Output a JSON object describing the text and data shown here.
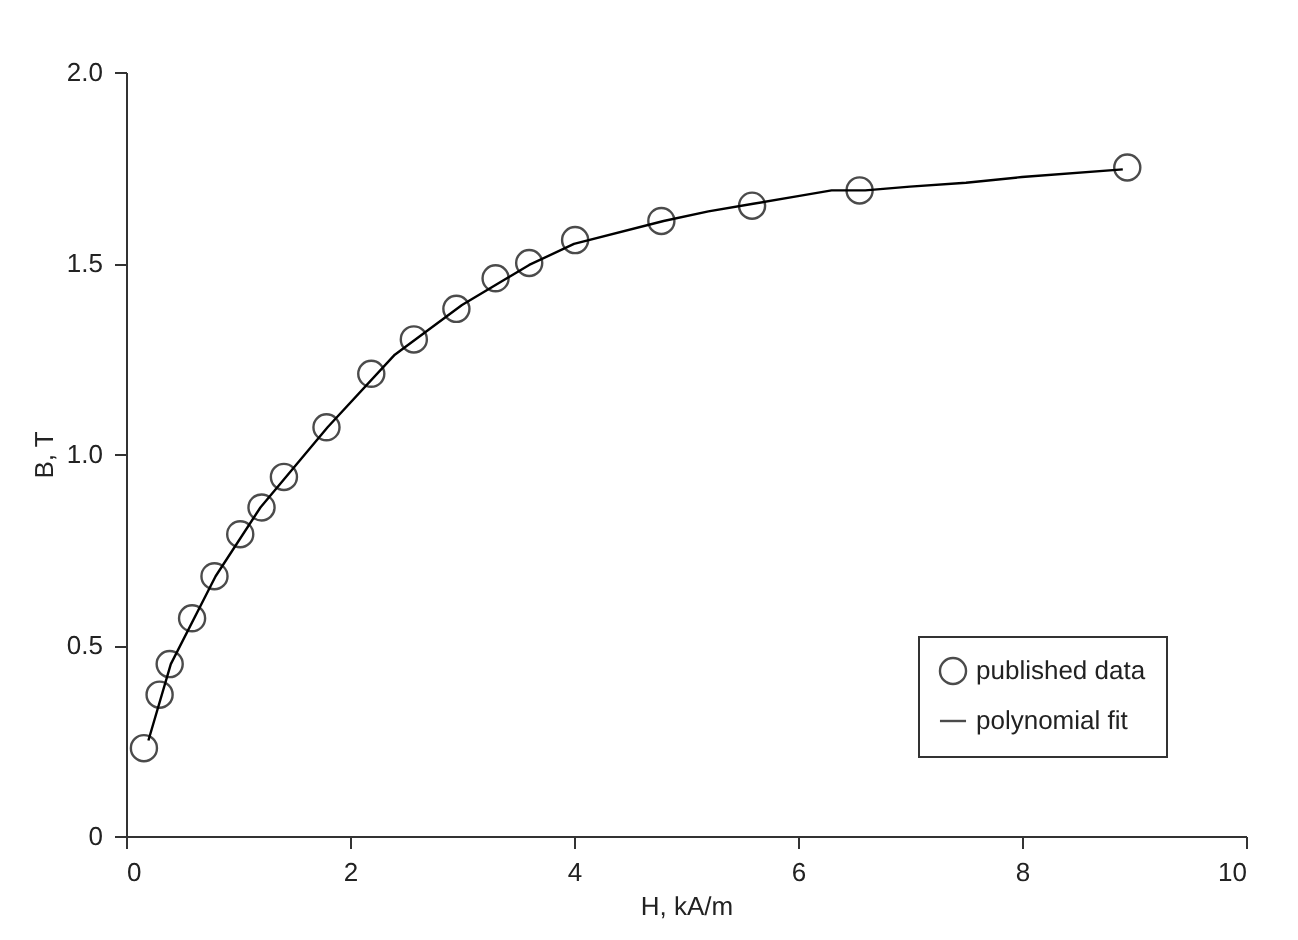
{
  "chart_data": {
    "type": "scatter",
    "xlabel": "H, kA/m",
    "ylabel": "B, T",
    "xlim": [
      0,
      10
    ],
    "ylim": [
      0,
      2.0
    ],
    "xticks": [
      0,
      2,
      4,
      6,
      8,
      10
    ],
    "yticks": [
      {
        "value": 0,
        "label": "0"
      },
      {
        "value": 0.5,
        "label": "0.5"
      },
      {
        "value": 1.0,
        "label": "1.0"
      },
      {
        "value": 1.5,
        "label": "1.5"
      },
      {
        "value": 2.0,
        "label": "2.0"
      }
    ],
    "grid": false,
    "legend": "bottom right",
    "series": [
      {
        "name": "published data",
        "marker": "circle",
        "color": "#000000",
        "x": [
          0.16,
          0.3,
          0.39,
          0.59,
          0.79,
          1.02,
          1.21,
          1.41,
          1.79,
          2.19,
          2.57,
          2.95,
          3.3,
          3.6,
          4.01,
          4.78,
          5.59,
          6.55,
          8.94
        ],
        "values": [
          0.23,
          0.37,
          0.45,
          0.57,
          0.68,
          0.79,
          0.86,
          0.94,
          1.07,
          1.21,
          1.3,
          1.38,
          1.46,
          1.5,
          1.56,
          1.61,
          1.65,
          1.69,
          1.75
        ]
      },
      {
        "name": "polynomial fit",
        "type": "line",
        "marker": "none",
        "line_style": "solid",
        "color": "#000000",
        "x": [
          0.2,
          0.4,
          0.8,
          1.2,
          1.8,
          2.4,
          3.0,
          3.6,
          4.0,
          4.8,
          5.2,
          5.6,
          6.0,
          6.3,
          6.6,
          7.0,
          7.5,
          8.0,
          8.9
        ],
        "values": [
          0.25,
          0.45,
          0.68,
          0.86,
          1.07,
          1.26,
          1.39,
          1.495,
          1.55,
          1.61,
          1.635,
          1.655,
          1.675,
          1.69,
          1.69,
          1.7,
          1.71,
          1.725,
          1.745
        ]
      }
    ]
  }
}
